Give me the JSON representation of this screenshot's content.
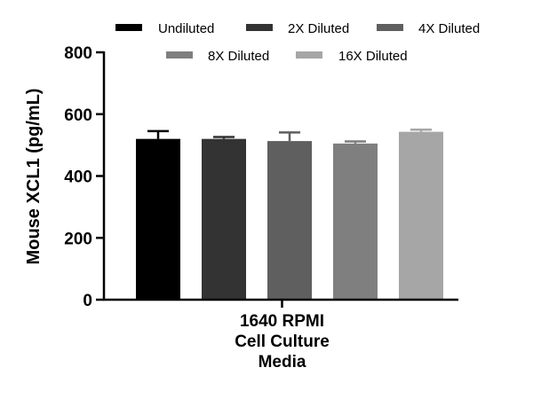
{
  "chart_data": {
    "type": "bar",
    "title": "",
    "xlabel_lines": [
      "1640 RPMI",
      "Cell Culture",
      "Media"
    ],
    "ylabel": "Mouse XCL1 (pg/mL)",
    "ylim": [
      0,
      800
    ],
    "yticks": [
      0,
      200,
      400,
      600,
      800
    ],
    "ytick_labels": [
      "0",
      "200",
      "400",
      "600",
      "800"
    ],
    "grid": false,
    "legend_position": "top",
    "series": [
      {
        "name": "Undiluted",
        "value": 520,
        "error": 25,
        "color": "#000000"
      },
      {
        "name": "2X Diluted",
        "value": 520,
        "error": 6,
        "color": "#333333"
      },
      {
        "name": "4X Diluted",
        "value": 513,
        "error": 28,
        "color": "#5f5f5f"
      },
      {
        "name": "8X Diluted",
        "value": 505,
        "error": 7,
        "color": "#7f7f7f"
      },
      {
        "name": "16X Diluted",
        "value": 543,
        "error": 7,
        "color": "#a6a6a6"
      }
    ]
  }
}
